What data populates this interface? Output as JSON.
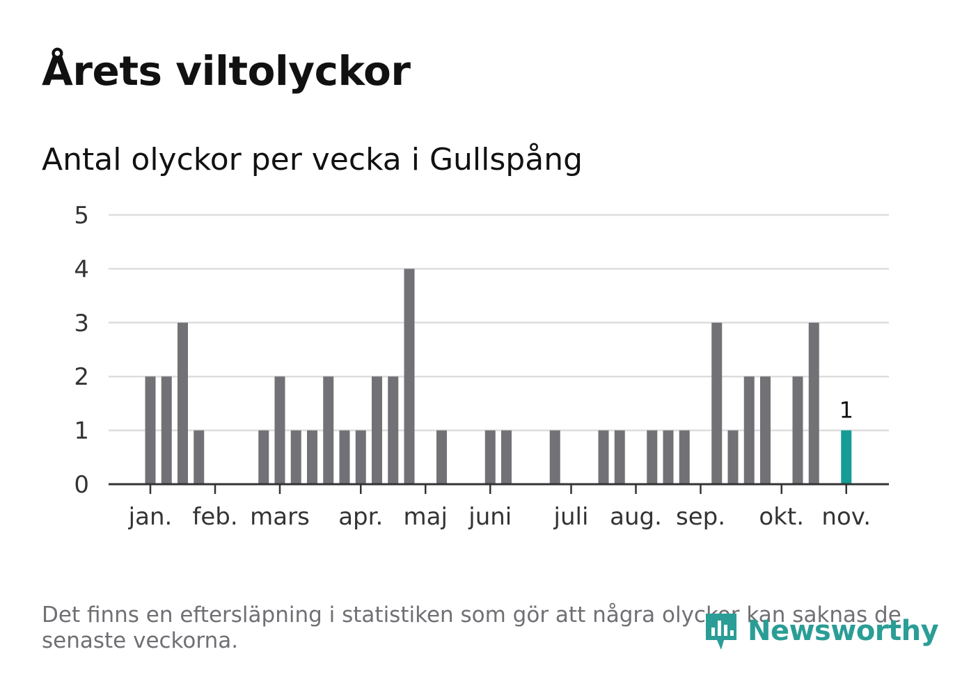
{
  "title": "Årets viltolyckor",
  "subtitle": "Antal olyckor per vecka i Gullspång",
  "footnote": "Det finns en eftersläpning i statistiken som gör att några olyckor kan saknas de senaste veckorna.",
  "brand": {
    "name": "Newsworthy",
    "icon": "newsworthy-logo-icon"
  },
  "colors": {
    "bar": "#727176",
    "highlight": "#149c95",
    "grid": "#dddddd",
    "axis": "#333333",
    "text": "#333333"
  },
  "chart_data": {
    "type": "bar",
    "title": "Antal olyckor per vecka i Gullspång",
    "xlabel": "",
    "ylabel": "",
    "ylim": [
      0,
      5
    ],
    "yticks": [
      0,
      1,
      2,
      3,
      4,
      5
    ],
    "x_month_labels": [
      {
        "label": "jan.",
        "week": 1
      },
      {
        "label": "feb.",
        "week": 5
      },
      {
        "label": "mars",
        "week": 9
      },
      {
        "label": "apr.",
        "week": 14
      },
      {
        "label": "maj",
        "week": 18
      },
      {
        "label": "juni",
        "week": 22
      },
      {
        "label": "juli",
        "week": 27
      },
      {
        "label": "aug.",
        "week": 31
      },
      {
        "label": "sep.",
        "week": 35
      },
      {
        "label": "okt.",
        "week": 40
      },
      {
        "label": "nov.",
        "week": 44
      }
    ],
    "weeks": [
      1,
      2,
      3,
      4,
      5,
      6,
      7,
      8,
      9,
      10,
      11,
      12,
      13,
      14,
      15,
      16,
      17,
      18,
      19,
      20,
      21,
      22,
      23,
      24,
      25,
      26,
      27,
      28,
      29,
      30,
      31,
      32,
      33,
      34,
      35,
      36,
      37,
      38,
      39,
      40,
      41,
      42,
      43,
      44
    ],
    "values": [
      2,
      2,
      3,
      1,
      0,
      0,
      0,
      1,
      2,
      1,
      1,
      2,
      1,
      1,
      2,
      2,
      4,
      0,
      1,
      0,
      0,
      1,
      1,
      0,
      0,
      1,
      0,
      0,
      1,
      1,
      0,
      1,
      1,
      1,
      0,
      3,
      1,
      2,
      2,
      0,
      2,
      3,
      0,
      1
    ],
    "highlight_index": 43,
    "highlight_label": "1",
    "grid": true
  }
}
